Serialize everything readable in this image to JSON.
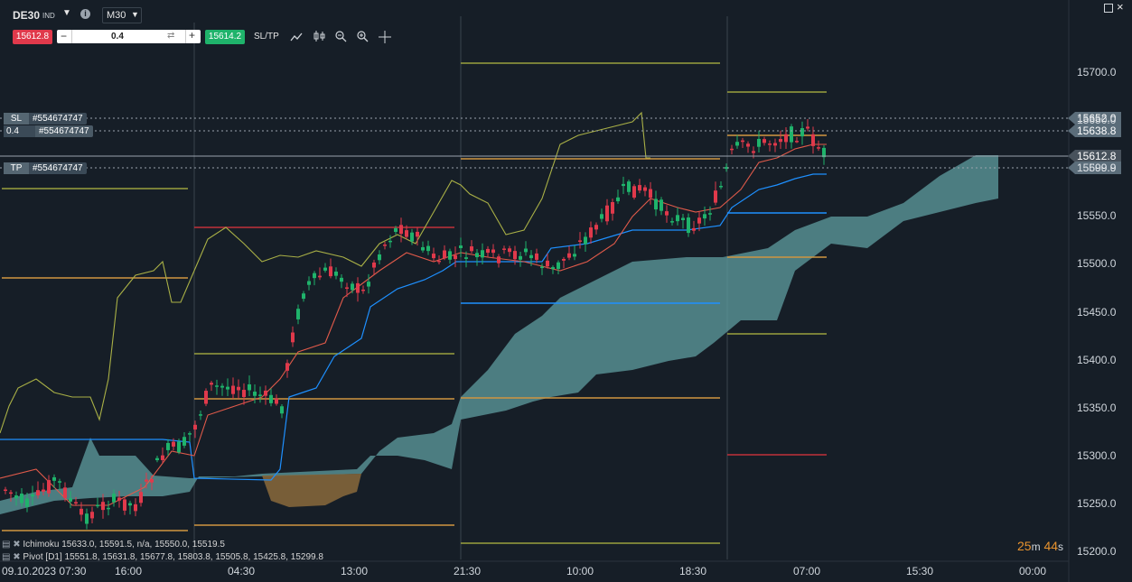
{
  "symbol": {
    "name": "DE30",
    "tag": "IND",
    "timeframe": "M30"
  },
  "trade": {
    "sell_price": "15612.8",
    "volume": "0.4",
    "buy_price": "15614.2",
    "sltp_label": "SL/TP"
  },
  "orders": {
    "sl_label": "SL",
    "sl_id": "#554674747",
    "pos_volume": "0.4",
    "pos_id": "#554674747",
    "tp_label": "TP",
    "tp_id": "#554674747"
  },
  "price_tags": {
    "sl": "15652.0",
    "entry": "15638.8",
    "current": "15612.8",
    "tp": "15599.9"
  },
  "y_axis": [
    "15700.0",
    "15650.0",
    "15600.0",
    "15550.0",
    "15500.0",
    "15450.0",
    "15400.0",
    "15350.0",
    "15300.0",
    "15250.0",
    "15200.0"
  ],
  "x_axis": [
    "09.10.2023 07:30",
    "16:00",
    "04:30",
    "13:00",
    "21:30",
    "10:00",
    "18:30",
    "07:00",
    "15:30",
    "00:00"
  ],
  "timer": {
    "minutes": "25",
    "m": "m",
    "seconds": "44",
    "s": "s"
  },
  "indicators": [
    {
      "name": "Ichimoku",
      "values": "15633.0, 15591.5, n/a, 15550.0, 15519.5"
    },
    {
      "name": "Pivot [D1]",
      "values": "15551.8, 15631.8, 15677.8, 15803.8, 15505.8, 15425.8, 15299.8"
    }
  ],
  "colors": {
    "bull": "#1fb36b",
    "bear": "#e0394b",
    "cloud_up": "#5f9ea0",
    "cloud_down": "#8a6a3c",
    "pivot": "#d09540",
    "r_level": "#c8c050",
    "s_level": "#d09540",
    "kijun": "#1e90ff",
    "tenkan": "#e05a4a"
  },
  "icons": [
    "info-icon",
    "line-chart-icon",
    "candle-settings-icon",
    "zoom-out-icon",
    "zoom-in-icon",
    "crosshair-icon",
    "maximize-icon"
  ]
}
